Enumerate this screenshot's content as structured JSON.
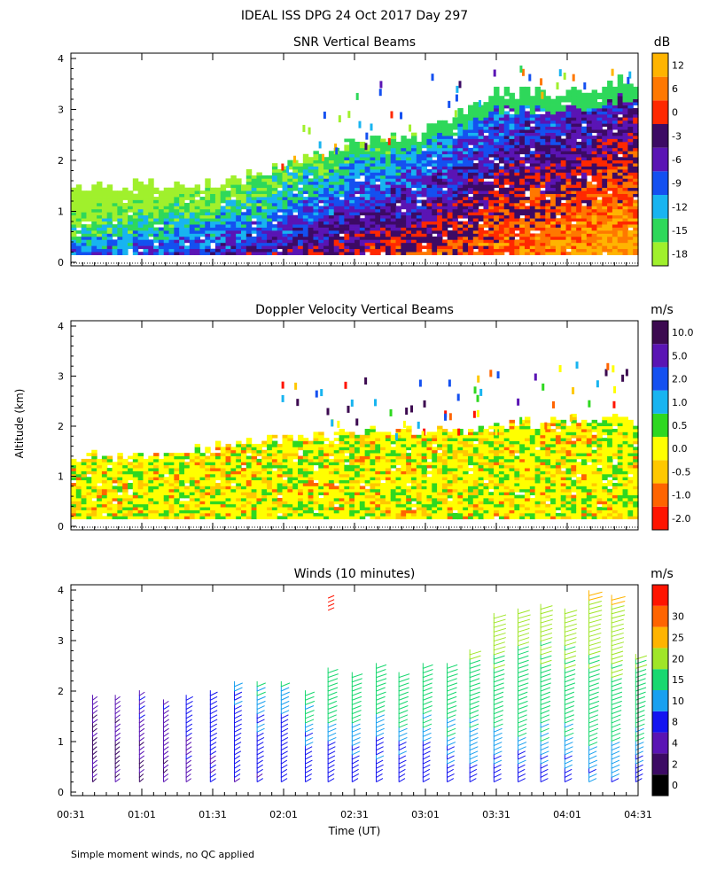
{
  "figure": {
    "title": "IDEAL ISS DPG  24 Oct 2017 Day 297",
    "ylabel": "Altitude (km)",
    "xlabel": "Time (UT)",
    "footnote": "Simple moment winds, no QC applied",
    "x_ticks": [
      "00:31",
      "01:01",
      "01:31",
      "02:01",
      "02:31",
      "03:01",
      "03:31",
      "04:01",
      "04:31"
    ],
    "y_ticks": [
      "0",
      "1",
      "2",
      "3",
      "4"
    ]
  },
  "chart_data": [
    {
      "type": "heatmap",
      "title": "SNR Vertical Beams",
      "xlabel": "Time (UT)",
      "ylabel": "Altitude (km)",
      "x_range_hours": [
        0.5167,
        4.5167
      ],
      "ylim": [
        0,
        4
      ],
      "colorbar": {
        "unit": "dB",
        "labels": [
          "-18",
          "-15",
          "-12",
          "-9",
          "-6",
          "-3",
          "0",
          "6",
          "12"
        ],
        "colors": [
          "#a0f02c",
          "#2ed85a",
          "#18b4f0",
          "#1450f0",
          "#5a14b4",
          "#3c0a64",
          "#ff2800",
          "#ff7800",
          "#ffb400"
        ]
      },
      "echo_top_km": [
        {
          "t": 0.52,
          "top": 1.4
        },
        {
          "t": 1.0,
          "top": 1.55
        },
        {
          "t": 1.5,
          "top": 1.5
        },
        {
          "t": 2.0,
          "top": 1.85
        },
        {
          "t": 2.5,
          "top": 2.3
        },
        {
          "t": 3.0,
          "top": 2.5
        },
        {
          "t": 3.5,
          "top": 3.3
        },
        {
          "t": 4.0,
          "top": 3.3
        },
        {
          "t": 4.5,
          "top": 3.6
        }
      ]
    },
    {
      "type": "heatmap",
      "title": "Doppler Velocity Vertical Beams",
      "xlabel": "Time (UT)",
      "ylabel": "Altitude (km)",
      "x_range_hours": [
        0.5167,
        4.5167
      ],
      "ylim": [
        0,
        4
      ],
      "colorbar": {
        "unit": "m/s",
        "labels": [
          "-2.0",
          "-1.0",
          "-0.5",
          "0.0",
          "0.5",
          "1.0",
          "2.0",
          "5.0",
          "10.0"
        ],
        "colors": [
          "#ff1400",
          "#ff6400",
          "#ffc800",
          "#ffff00",
          "#2ed820",
          "#18b4f0",
          "#1450f0",
          "#5a14b4",
          "#3c0a50"
        ]
      },
      "echo_top_km": [
        {
          "t": 0.52,
          "top": 1.4
        },
        {
          "t": 1.0,
          "top": 1.35
        },
        {
          "t": 1.5,
          "top": 1.55
        },
        {
          "t": 2.0,
          "top": 1.7
        },
        {
          "t": 2.5,
          "top": 1.8
        },
        {
          "t": 3.0,
          "top": 1.9
        },
        {
          "t": 3.5,
          "top": 1.95
        },
        {
          "t": 4.0,
          "top": 2.1
        },
        {
          "t": 4.5,
          "top": 2.1
        }
      ]
    },
    {
      "type": "scatter",
      "title": "Winds (10 minutes)",
      "xlabel": "Time (UT)",
      "ylabel": "Altitude (km)",
      "x_range_hours": [
        0.5167,
        4.5167
      ],
      "ylim": [
        0,
        4
      ],
      "colorbar": {
        "unit": "m/s",
        "labels": [
          "0",
          "2",
          "4",
          "8",
          "10",
          "15",
          "20",
          "25",
          "30"
        ],
        "colors": [
          "#000000",
          "#3c0a64",
          "#5a14b4",
          "#1414f0",
          "#18a0f0",
          "#18d870",
          "#a0e628",
          "#ffb400",
          "#ff6400",
          "#ff1400"
        ]
      },
      "profiles": [
        {
          "t": 0.67,
          "top": 1.85,
          "speed": 3
        },
        {
          "t": 0.83,
          "top": 1.85,
          "speed": 3
        },
        {
          "t": 1.0,
          "top": 1.95,
          "speed": 4
        },
        {
          "t": 1.17,
          "top": 1.8,
          "speed": 4
        },
        {
          "t": 1.33,
          "top": 1.9,
          "speed": 6
        },
        {
          "t": 1.5,
          "top": 2.0,
          "speed": 8
        },
        {
          "t": 1.67,
          "top": 2.1,
          "speed": 9
        },
        {
          "t": 1.83,
          "top": 2.1,
          "speed": 10
        },
        {
          "t": 2.0,
          "top": 2.1,
          "speed": 10
        },
        {
          "t": 2.17,
          "top": 2.0,
          "speed": 12
        },
        {
          "t": 2.33,
          "top": 2.4,
          "speed": 14
        },
        {
          "t": 2.5,
          "top": 2.3,
          "speed": 14
        },
        {
          "t": 2.67,
          "top": 2.5,
          "speed": 14
        },
        {
          "t": 2.83,
          "top": 2.3,
          "speed": 14
        },
        {
          "t": 3.0,
          "top": 2.5,
          "speed": 14
        },
        {
          "t": 3.17,
          "top": 2.5,
          "speed": 15
        },
        {
          "t": 3.33,
          "top": 2.8,
          "speed": 16
        },
        {
          "t": 3.5,
          "top": 3.5,
          "speed": 18
        },
        {
          "t": 3.67,
          "top": 3.6,
          "speed": 18
        },
        {
          "t": 3.83,
          "top": 3.7,
          "speed": 18
        },
        {
          "t": 4.0,
          "top": 3.6,
          "speed": 18
        },
        {
          "t": 4.17,
          "top": 3.9,
          "speed": 20
        },
        {
          "t": 4.33,
          "top": 3.8,
          "speed": 20
        },
        {
          "t": 4.5,
          "top": 2.7,
          "speed": 16
        }
      ],
      "annotation": "isolated red barb near 02:20 at 3.6-3.9 km"
    }
  ]
}
